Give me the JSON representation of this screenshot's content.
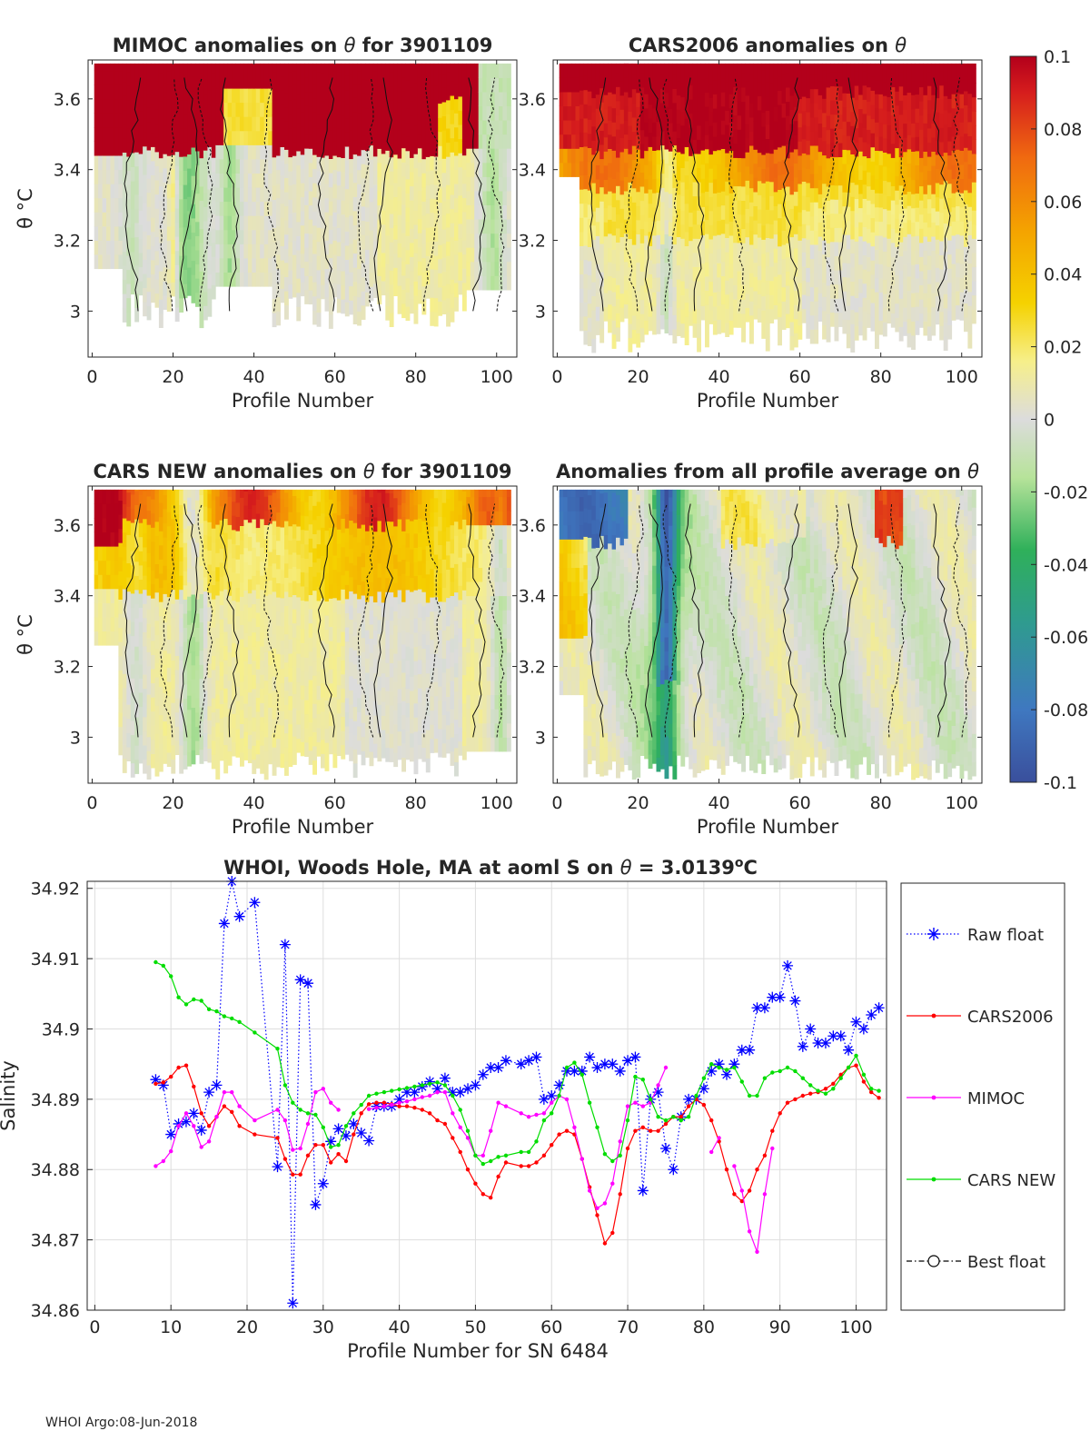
{
  "footer": "WHOI Argo:08-Jun-2018",
  "colorbar": {
    "ticks": [
      "0.1",
      "0.08",
      "0.06",
      "0.04",
      "0.02",
      "0",
      "-0.02",
      "-0.04",
      "-0.06",
      "-0.08",
      "-0.1"
    ],
    "range": [
      -0.1,
      0.1
    ]
  },
  "chart_data": [
    {
      "type": "heatmap",
      "title_prefix": "MIMOC anomalies on ",
      "title_suffix": "  for 3901109",
      "theta_symbol": "θ",
      "xlabel": "Profile Number",
      "ylabel": "θ °C",
      "xlim": [
        -1,
        105
      ],
      "ylim": [
        2.87,
        3.71
      ],
      "xticks": [
        "0",
        "20",
        "40",
        "60",
        "80",
        "100"
      ],
      "yticks": [
        "3",
        "3.2",
        "3.4",
        "3.6"
      ],
      "ytick_values": [
        3.0,
        3.2,
        3.4,
        3.6
      ],
      "pattern": "mimoc"
    },
    {
      "type": "heatmap",
      "title_prefix": "CARS2006 anomalies on ",
      "title_suffix": "",
      "theta_symbol": "θ",
      "xlabel": "Profile Number",
      "xlim": [
        -1,
        105
      ],
      "ylim": [
        2.87,
        3.71
      ],
      "xticks": [
        "0",
        "20",
        "40",
        "60",
        "80",
        "100"
      ],
      "yticks": [
        "3",
        "3.2",
        "3.4",
        "3.6"
      ],
      "ytick_values": [
        3.0,
        3.2,
        3.4,
        3.6
      ],
      "pattern": "cars2006"
    },
    {
      "type": "heatmap",
      "title_prefix": "CARS NEW anomalies on ",
      "title_suffix": " for 3901109",
      "theta_symbol": "θ",
      "xlabel": "Profile Number",
      "ylabel": "θ °C",
      "xlim": [
        -1,
        105
      ],
      "ylim": [
        2.87,
        3.71
      ],
      "xticks": [
        "0",
        "20",
        "40",
        "60",
        "80",
        "100"
      ],
      "yticks": [
        "3",
        "3.2",
        "3.4",
        "3.6"
      ],
      "ytick_values": [
        3.0,
        3.2,
        3.4,
        3.6
      ],
      "pattern": "carsnew"
    },
    {
      "type": "heatmap",
      "title_prefix": "Anomalies from all profile average on ",
      "title_suffix": "",
      "theta_symbol": "θ",
      "xlabel": "Profile Number",
      "xlim": [
        -1,
        105
      ],
      "ylim": [
        2.87,
        3.71
      ],
      "xticks": [
        "0",
        "20",
        "40",
        "60",
        "80",
        "100"
      ],
      "yticks": [
        "3",
        "3.2",
        "3.4",
        "3.6"
      ],
      "ytick_values": [
        3.0,
        3.2,
        3.4,
        3.6
      ],
      "pattern": "avg"
    },
    {
      "type": "line",
      "title_prefix": "WHOI, Woods Hole, MA at aoml S on ",
      "title_mid": " = 3.0139",
      "title_sup": "o",
      "title_end": "C",
      "theta_symbol": "θ",
      "xlabel": "Profile Number for SN 6484",
      "ylabel": "Salinity",
      "xlim": [
        -1,
        104
      ],
      "ylim": [
        34.86,
        34.921
      ],
      "xticks": [
        "0",
        "10",
        "20",
        "30",
        "40",
        "50",
        "60",
        "70",
        "80",
        "90",
        "100"
      ],
      "xtick_values": [
        0,
        10,
        20,
        30,
        40,
        50,
        60,
        70,
        80,
        90,
        100
      ],
      "yticks": [
        "34.86",
        "34.87",
        "34.88",
        "34.89",
        "34.9",
        "34.91",
        "34.92"
      ],
      "ytick_values": [
        34.86,
        34.87,
        34.88,
        34.89,
        34.9,
        34.91,
        34.92
      ],
      "grid": true,
      "legend_placement": "right-outside",
      "series": [
        {
          "name": "Raw float",
          "color": "#0000ff",
          "marker": "asterisk",
          "x": [
            8,
            9,
            10,
            11,
            12,
            13,
            14,
            15,
            16,
            17,
            18,
            19,
            21,
            24,
            25,
            26,
            27,
            28,
            29,
            30,
            31,
            32,
            33,
            34,
            35,
            36,
            37,
            38,
            39,
            40,
            41,
            42,
            43,
            44,
            45,
            46,
            47,
            48,
            49,
            50,
            51,
            52,
            53,
            54,
            56,
            57,
            58,
            59,
            60,
            61,
            62,
            63,
            64,
            65,
            66,
            67,
            68,
            69,
            70,
            71,
            72,
            73,
            74,
            75,
            76,
            77,
            78,
            79,
            80,
            81,
            82,
            83,
            84,
            85,
            86,
            87,
            88,
            89,
            90,
            91,
            92,
            93,
            94,
            95,
            96,
            97,
            98,
            99,
            100,
            101,
            102,
            103
          ],
          "y": [
            34.8928,
            34.892,
            34.885,
            34.8865,
            34.8868,
            34.888,
            34.8856,
            34.891,
            34.892,
            34.915,
            34.921,
            34.916,
            34.918,
            34.8804,
            34.912,
            34.861,
            34.907,
            34.9065,
            34.875,
            34.878,
            34.884,
            34.8858,
            34.8848,
            34.8865,
            34.8852,
            34.8841,
            34.889,
            34.889,
            34.889,
            34.89,
            34.891,
            34.891,
            34.8918,
            34.8925,
            34.8915,
            34.893,
            34.891,
            34.891,
            34.8915,
            34.892,
            34.8935,
            34.8945,
            34.8945,
            34.8955,
            34.895,
            34.8955,
            34.896,
            34.89,
            34.8905,
            34.892,
            34.894,
            34.894,
            34.894,
            34.896,
            34.8945,
            34.895,
            34.895,
            34.894,
            34.8955,
            34.896,
            34.877,
            34.89,
            34.891,
            34.883,
            34.88,
            34.8875,
            34.89,
            34.89,
            34.8915,
            34.894,
            34.895,
            34.8935,
            34.895,
            34.897,
            34.897,
            34.903,
            34.903,
            34.9045,
            34.9045,
            34.909,
            34.904,
            34.8975,
            34.9,
            34.898,
            34.898,
            34.899,
            34.899,
            34.897,
            34.901,
            34.9,
            34.902,
            34.903
          ]
        },
        {
          "name": "CARS2006",
          "color": "#ff0000",
          "marker": "dot",
          "x": [
            8,
            9,
            10,
            11,
            12,
            13,
            14,
            15,
            16,
            17,
            18,
            19,
            21,
            24,
            25,
            26,
            27,
            28,
            29,
            30,
            31,
            32,
            33,
            34,
            35,
            36,
            37,
            38,
            39,
            40,
            41,
            42,
            43,
            44,
            45,
            46,
            47,
            48,
            49,
            50,
            51,
            52,
            53,
            54,
            56,
            57,
            58,
            59,
            60,
            61,
            62,
            63,
            64,
            65,
            66,
            67,
            68,
            69,
            70,
            71,
            72,
            73,
            74,
            75,
            76,
            77,
            78,
            79,
            80,
            81,
            82,
            83,
            84,
            85,
            86,
            87,
            88,
            89,
            90,
            91,
            92,
            93,
            94,
            95,
            96,
            97,
            98,
            99,
            100,
            101,
            102,
            103
          ],
          "y": [
            34.8922,
            34.8924,
            34.8932,
            34.8945,
            34.8948,
            34.8918,
            34.888,
            34.8862,
            34.8875,
            34.889,
            34.8882,
            34.8862,
            34.885,
            34.8845,
            34.8815,
            34.8793,
            34.8793,
            34.882,
            34.8835,
            34.8835,
            34.881,
            34.8822,
            34.8812,
            34.885,
            34.888,
            34.8893,
            34.8895,
            34.8895,
            34.8893,
            34.889,
            34.889,
            34.8888,
            34.8885,
            34.888,
            34.887,
            34.8865,
            34.8845,
            34.8825,
            34.88,
            34.878,
            34.8765,
            34.876,
            34.879,
            34.881,
            34.8805,
            34.8805,
            34.881,
            34.882,
            34.8835,
            34.885,
            34.8855,
            34.885,
            34.8815,
            34.8775,
            34.8735,
            34.8695,
            34.871,
            34.8765,
            34.883,
            34.8855,
            34.886,
            34.8855,
            34.8855,
            34.8865,
            34.8875,
            34.8875,
            34.889,
            34.89,
            34.8892,
            34.887,
            34.884,
            34.88,
            34.8765,
            34.8755,
            34.877,
            34.88,
            34.882,
            34.8855,
            34.888,
            34.8895,
            34.89,
            34.8905,
            34.8908,
            34.891,
            34.8915,
            34.8922,
            34.8935,
            34.8945,
            34.8948,
            34.8925,
            34.891,
            34.8902
          ]
        },
        {
          "name": "MIMOC",
          "color": "#ff00ff",
          "marker": "dot",
          "x": [
            8,
            9,
            10,
            11,
            12,
            13,
            14,
            15,
            16,
            17,
            18,
            19,
            21,
            24,
            25,
            26,
            27,
            28,
            29,
            30,
            31,
            32,
            null,
            36,
            37,
            38,
            39,
            40,
            41,
            42,
            43,
            44,
            45,
            46,
            47,
            48,
            49,
            50,
            51,
            52,
            53,
            54,
            56,
            57,
            58,
            59,
            60,
            61,
            62,
            63,
            64,
            65,
            66,
            67,
            68,
            69,
            70,
            71,
            72,
            73,
            74,
            75,
            null,
            81,
            82,
            null,
            84,
            85,
            86,
            87,
            88,
            89
          ],
          "y": [
            34.8805,
            34.8812,
            34.8826,
            34.8862,
            34.888,
            34.8862,
            34.8832,
            34.884,
            34.8875,
            34.891,
            34.891,
            34.889,
            34.887,
            34.8885,
            34.887,
            34.8828,
            34.883,
            34.8865,
            34.891,
            34.8915,
            34.8895,
            34.8885,
            null,
            34.8886,
            34.8888,
            34.889,
            34.8892,
            34.8895,
            34.8897,
            34.89,
            34.8903,
            34.8905,
            34.891,
            34.891,
            34.888,
            34.886,
            34.8845,
            34.882,
            34.882,
            34.8855,
            34.8895,
            34.889,
            34.888,
            34.8875,
            34.8878,
            34.888,
            34.8895,
            34.8905,
            34.89,
            34.886,
            34.8815,
            34.877,
            34.8745,
            34.8752,
            34.878,
            34.884,
            34.889,
            34.8895,
            34.889,
            34.8895,
            34.892,
            34.8945,
            null,
            34.8825,
            34.8845,
            null,
            34.8805,
            34.877,
            34.8712,
            34.8683,
            34.8765,
            34.883
          ]
        },
        {
          "name": "CARS NEW",
          "color": "#00dd00",
          "marker": "dot",
          "x": [
            8,
            9,
            10,
            11,
            12,
            13,
            14,
            15,
            16,
            17,
            18,
            19,
            21,
            24,
            25,
            26,
            27,
            28,
            29,
            30,
            31,
            32,
            33,
            34,
            35,
            36,
            37,
            38,
            39,
            40,
            41,
            42,
            43,
            44,
            45,
            46,
            47,
            48,
            49,
            50,
            51,
            52,
            53,
            54,
            56,
            57,
            58,
            59,
            60,
            61,
            62,
            63,
            64,
            65,
            66,
            67,
            68,
            69,
            70,
            71,
            72,
            73,
            74,
            75,
            76,
            77,
            78,
            79,
            80,
            81,
            82,
            83,
            84,
            85,
            86,
            87,
            88,
            89,
            90,
            91,
            92,
            93,
            94,
            95,
            96,
            97,
            98,
            99,
            100,
            101,
            102,
            103
          ],
          "y": [
            34.9095,
            34.909,
            34.9075,
            34.9045,
            34.9035,
            34.9042,
            34.904,
            34.9028,
            34.9025,
            34.9018,
            34.9015,
            34.901,
            34.8995,
            34.8972,
            34.892,
            34.8895,
            34.8885,
            34.888,
            34.8878,
            34.886,
            34.8832,
            34.8835,
            34.8862,
            34.888,
            34.8892,
            34.8905,
            34.8908,
            34.891,
            34.8912,
            34.8914,
            34.8916,
            34.8918,
            34.892,
            34.8922,
            34.8924,
            34.892,
            34.8905,
            34.8885,
            34.8855,
            34.882,
            34.8808,
            34.8812,
            34.8818,
            34.882,
            34.8825,
            34.8825,
            34.884,
            34.887,
            34.888,
            34.8905,
            34.8945,
            34.8952,
            34.8935,
            34.8895,
            34.886,
            34.8822,
            34.8812,
            34.882,
            34.887,
            34.8932,
            34.8928,
            34.89,
            34.8875,
            34.887,
            34.8875,
            34.887,
            34.8875,
            34.8905,
            34.893,
            34.895,
            34.8945,
            34.8942,
            34.8945,
            34.8925,
            34.8905,
            34.8905,
            34.893,
            34.8938,
            34.894,
            34.8945,
            34.894,
            34.893,
            34.892,
            34.8912,
            34.8908,
            34.8915,
            34.893,
            34.8945,
            34.8962,
            34.8935,
            34.8915,
            34.8912
          ]
        },
        {
          "name": "Best float",
          "color": "#000000",
          "marker": "circle",
          "x": [],
          "y": []
        }
      ]
    }
  ]
}
